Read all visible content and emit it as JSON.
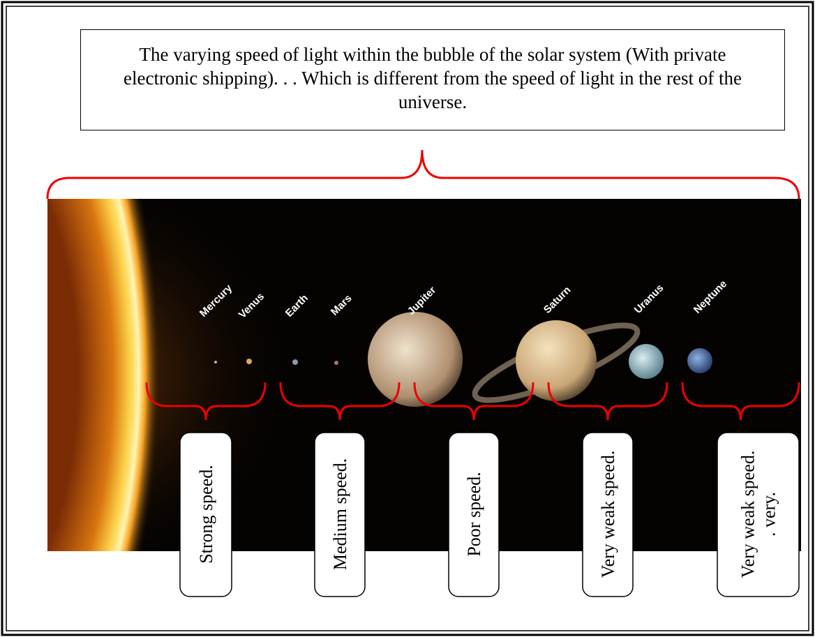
{
  "title": "The varying speed of light within the bubble of the solar system (With private electronic shipping). . . Which is different from the speed of light in the rest of the universe.",
  "planets": [
    "Mercury",
    "Venus",
    "Earth",
    "Mars",
    "Jupiter",
    "Saturn",
    "Uranus",
    "Neptune"
  ],
  "speeds": [
    {
      "lines": [
        "Strong speed."
      ]
    },
    {
      "lines": [
        "Medium speed."
      ]
    },
    {
      "lines": [
        "Poor speed."
      ]
    },
    {
      "lines": [
        "Very weak speed."
      ]
    },
    {
      "lines": [
        "Very weak speed.",
        ". very."
      ]
    }
  ]
}
